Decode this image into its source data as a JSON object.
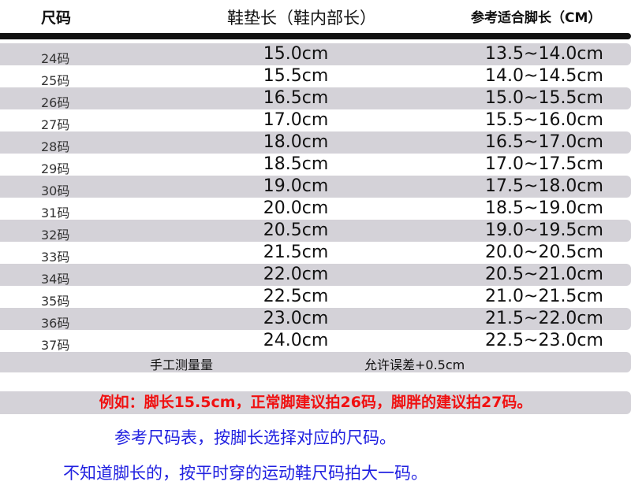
{
  "header": {
    "size": "尺码",
    "insole": "鞋垫长（鞋内部长）",
    "foot": "参考适合脚长（CM）"
  },
  "rows": [
    {
      "size": "24码",
      "insole": "15.0cm",
      "foot": "13.5~14.0cm"
    },
    {
      "size": "25码",
      "insole": "15.5cm",
      "foot": "14.0~14.5cm"
    },
    {
      "size": "26码",
      "insole": "16.5cm",
      "foot": "15.0~15.5cm"
    },
    {
      "size": "27码",
      "insole": "17.0cm",
      "foot": "15.5~16.0cm"
    },
    {
      "size": "28码",
      "insole": "18.0cm",
      "foot": "16.5~17.0cm"
    },
    {
      "size": "29码",
      "insole": "18.5cm",
      "foot": "17.0~17.5cm"
    },
    {
      "size": "30码",
      "insole": "19.0cm",
      "foot": "17.5~18.0cm"
    },
    {
      "size": "31码",
      "insole": "20.0cm",
      "foot": "18.5~19.0cm"
    },
    {
      "size": "32码",
      "insole": "20.5cm",
      "foot": "19.0~19.5cm"
    },
    {
      "size": "33码",
      "insole": "21.5cm",
      "foot": "20.0~20.5cm"
    },
    {
      "size": "34码",
      "insole": "22.0cm",
      "foot": "20.5~21.0cm"
    },
    {
      "size": "35码",
      "insole": "22.5cm",
      "foot": "21.0~21.5cm"
    },
    {
      "size": "36码",
      "insole": "23.0cm",
      "foot": "21.5~22.0cm"
    },
    {
      "size": "37码",
      "insole": "24.0cm",
      "foot": "22.5~23.0cm"
    }
  ],
  "note": {
    "left": "手工测量量",
    "right": "允许误差+0.5cm"
  },
  "example": "例如：脚长15.5cm，正常脚建议拍26码，脚胖的建议拍27码。",
  "tips": [
    "参考尺码表，按脚长选择对应的尺码。",
    "不知道脚长的，按平时穿的运动鞋尺码拍大一码。"
  ],
  "colors": {
    "band": "#d4d2d8",
    "example_text": "#f01010",
    "tip_text": "#2020e0"
  }
}
